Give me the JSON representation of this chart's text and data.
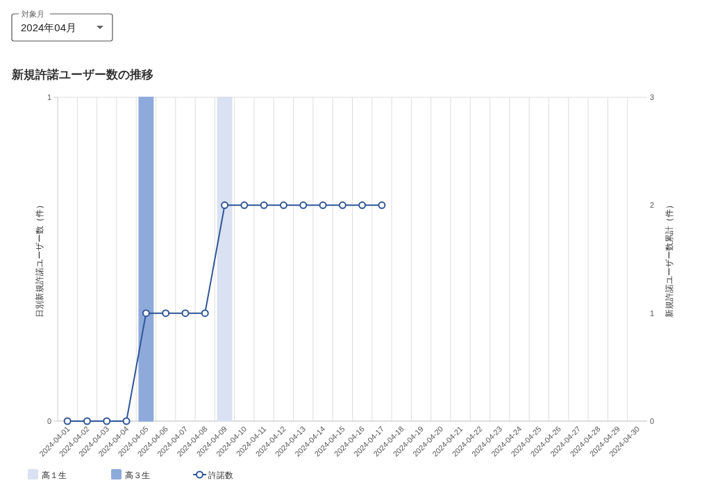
{
  "chart_data": {
    "type": "bar",
    "title": "新規許諾ユーザー数の推移",
    "ylabel": "日別新規許諾ユーザー数（件）",
    "y2label": "新規許諾ユーザー数累計（件）",
    "annotations": [
      "対象月",
      "2024年04月"
    ],
    "categories": [
      "2024-04-01",
      "2024-04-02",
      "2024-04-03",
      "2024-04-04",
      "2024-04-05",
      "2024-04-06",
      "2024-04-07",
      "2024-04-08",
      "2024-04-09",
      "2024-04-10",
      "2024-04-11",
      "2024-04-12",
      "2024-04-13",
      "2024-04-14",
      "2024-04-15",
      "2024-04-16",
      "2024-04-17",
      "2024-04-18",
      "2024-04-19",
      "2024-04-20",
      "2024-04-21",
      "2024-04-22",
      "2024-04-23",
      "2024-04-24",
      "2024-04-25",
      "2024-04-26",
      "2024-04-27",
      "2024-04-28",
      "2024-04-29",
      "2024-04-30"
    ],
    "series": [
      {
        "name": "高１生",
        "color": "#d9e1f2",
        "values": [
          0,
          0,
          0,
          0,
          0,
          0,
          0,
          0,
          1,
          0,
          0,
          0,
          0,
          0,
          0,
          0,
          0,
          null,
          null,
          null,
          null,
          null,
          null,
          null,
          null,
          null,
          null,
          null,
          null,
          null
        ]
      },
      {
        "name": "高３生",
        "color": "#8eaadb",
        "values": [
          0,
          0,
          0,
          0,
          1,
          0,
          0,
          0,
          0,
          0,
          0,
          0,
          0,
          0,
          0,
          0,
          0,
          null,
          null,
          null,
          null,
          null,
          null,
          null,
          null,
          null,
          null,
          null,
          null,
          null
        ]
      },
      {
        "name": "許諾数",
        "type": "line",
        "axis": "y2",
        "color": "#2f5597",
        "values": [
          0,
          0,
          0,
          0,
          1,
          1,
          1,
          1,
          2,
          2,
          2,
          2,
          2,
          2,
          2,
          2,
          2,
          null,
          null,
          null,
          null,
          null,
          null,
          null,
          null,
          null,
          null,
          null,
          null,
          null
        ]
      }
    ],
    "stacked": true,
    "ylim": [
      0,
      1
    ],
    "yticks": [
      0,
      1
    ],
    "y2lim": [
      0,
      3
    ],
    "y2ticks": [
      0,
      1,
      2,
      3
    ],
    "grid": true,
    "legend": "bottom left",
    "marker": "circle",
    "line_style": "solid"
  }
}
